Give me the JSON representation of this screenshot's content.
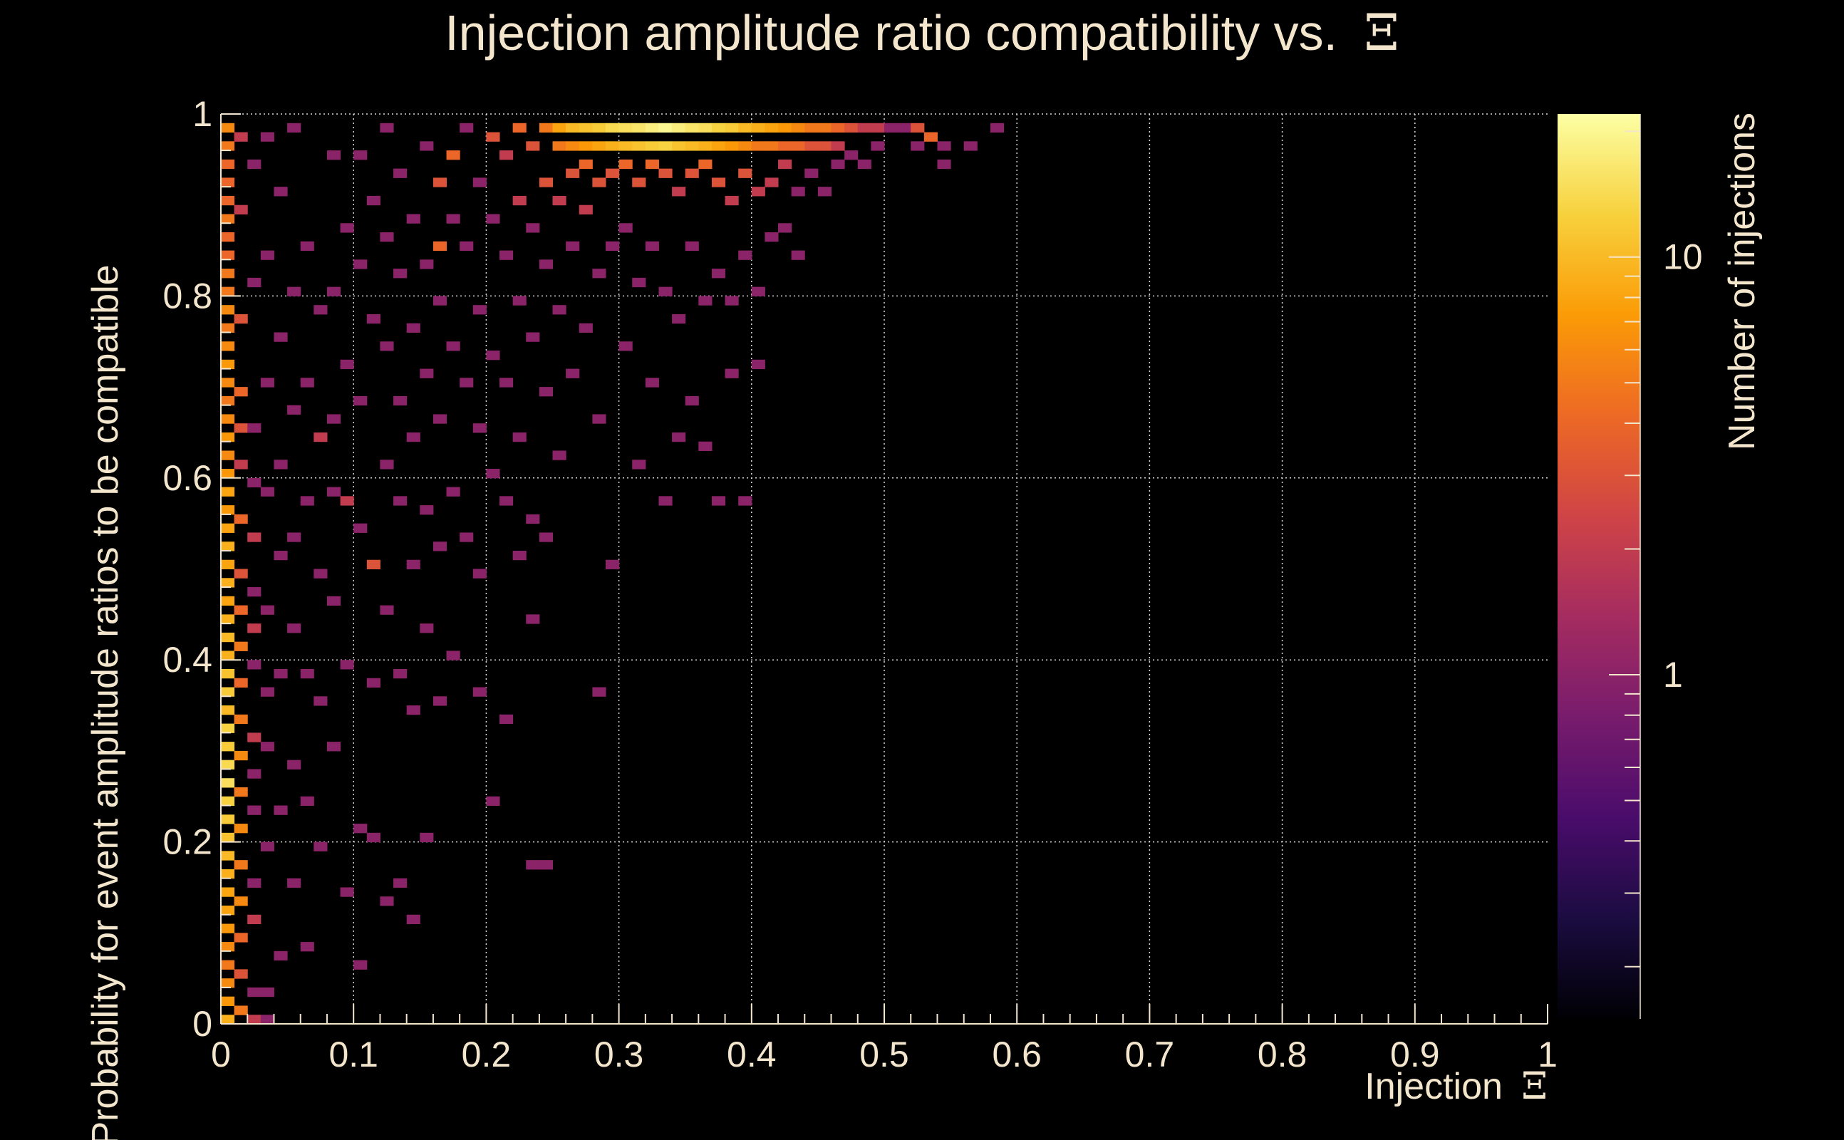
{
  "chart_data": {
    "type": "heatmap",
    "title": "Injection amplitude ratio compatibility vs.",
    "title_symbol": "Ξ",
    "xlabel": "Injection",
    "xlabel_symbol": "Ξ",
    "ylabel": "Probability for event amplitude ratios to be compatible",
    "colorbar_label": "Number of injections",
    "xlim": [
      0,
      1
    ],
    "ylim": [
      0,
      1
    ],
    "x_ticks": [
      "0",
      "0.1",
      "0.2",
      "0.3",
      "0.4",
      "0.5",
      "0.6",
      "0.7",
      "0.8",
      "0.9",
      "1"
    ],
    "y_ticks": [
      "0",
      "0.2",
      "0.4",
      "0.6",
      "0.8",
      "1"
    ],
    "colorbar_ticks": [
      "1",
      "10"
    ],
    "colorbar_scale": "log",
    "colorbar_range": [
      0.15,
      22
    ],
    "grid": true,
    "colors": {
      "background": "#000000",
      "text": "#f3e6cd",
      "grid": "#d9d9d9"
    },
    "colormap": [
      "#000004",
      "#1b0c41",
      "#4a0c6b",
      "#781c6d",
      "#a52c60",
      "#cf4446",
      "#ed6925",
      "#fb9b06",
      "#f7d13d",
      "#fcffa4"
    ],
    "bin_size": [
      0.01,
      0.01
    ],
    "cells": [
      [
        0.005,
        0.985,
        6
      ],
      [
        0.005,
        0.965,
        5
      ],
      [
        0.005,
        0.945,
        4
      ],
      [
        0.005,
        0.925,
        4
      ],
      [
        0.005,
        0.905,
        4
      ],
      [
        0.005,
        0.885,
        5
      ],
      [
        0.005,
        0.865,
        4
      ],
      [
        0.005,
        0.845,
        4
      ],
      [
        0.005,
        0.825,
        5
      ],
      [
        0.005,
        0.805,
        5
      ],
      [
        0.005,
        0.785,
        6
      ],
      [
        0.005,
        0.765,
        5
      ],
      [
        0.005,
        0.745,
        6
      ],
      [
        0.005,
        0.725,
        7
      ],
      [
        0.005,
        0.705,
        6
      ],
      [
        0.005,
        0.685,
        5
      ],
      [
        0.005,
        0.665,
        6
      ],
      [
        0.005,
        0.645,
        7
      ],
      [
        0.005,
        0.625,
        6
      ],
      [
        0.005,
        0.605,
        7
      ],
      [
        0.005,
        0.585,
        8
      ],
      [
        0.005,
        0.565,
        7
      ],
      [
        0.005,
        0.545,
        8
      ],
      [
        0.005,
        0.525,
        9
      ],
      [
        0.005,
        0.505,
        8
      ],
      [
        0.005,
        0.485,
        9
      ],
      [
        0.005,
        0.465,
        8
      ],
      [
        0.005,
        0.445,
        9
      ],
      [
        0.005,
        0.425,
        10
      ],
      [
        0.005,
        0.405,
        9
      ],
      [
        0.005,
        0.385,
        11
      ],
      [
        0.005,
        0.365,
        12
      ],
      [
        0.005,
        0.345,
        10
      ],
      [
        0.005,
        0.325,
        13
      ],
      [
        0.005,
        0.305,
        12
      ],
      [
        0.005,
        0.285,
        14
      ],
      [
        0.005,
        0.265,
        15
      ],
      [
        0.005,
        0.245,
        13
      ],
      [
        0.005,
        0.225,
        12
      ],
      [
        0.005,
        0.205,
        11
      ],
      [
        0.005,
        0.185,
        10
      ],
      [
        0.005,
        0.165,
        9
      ],
      [
        0.005,
        0.145,
        8
      ],
      [
        0.005,
        0.125,
        8
      ],
      [
        0.005,
        0.105,
        7
      ],
      [
        0.005,
        0.085,
        6
      ],
      [
        0.005,
        0.065,
        5
      ],
      [
        0.005,
        0.045,
        6
      ],
      [
        0.005,
        0.025,
        7
      ],
      [
        0.005,
        0.005,
        9
      ],
      [
        0.015,
        0.975,
        2
      ],
      [
        0.015,
        0.895,
        2
      ],
      [
        0.015,
        0.775,
        3
      ],
      [
        0.015,
        0.695,
        4
      ],
      [
        0.015,
        0.655,
        3
      ],
      [
        0.015,
        0.615,
        2
      ],
      [
        0.015,
        0.555,
        4
      ],
      [
        0.015,
        0.495,
        3
      ],
      [
        0.015,
        0.455,
        4
      ],
      [
        0.015,
        0.415,
        5
      ],
      [
        0.015,
        0.375,
        4
      ],
      [
        0.015,
        0.335,
        5
      ],
      [
        0.015,
        0.295,
        6
      ],
      [
        0.015,
        0.255,
        5
      ],
      [
        0.015,
        0.215,
        6
      ],
      [
        0.015,
        0.175,
        5
      ],
      [
        0.015,
        0.135,
        6
      ],
      [
        0.015,
        0.095,
        4
      ],
      [
        0.015,
        0.055,
        3
      ],
      [
        0.015,
        0.015,
        5
      ],
      [
        0.025,
        0.945,
        1
      ],
      [
        0.025,
        0.815,
        1
      ],
      [
        0.025,
        0.655,
        1
      ],
      [
        0.025,
        0.595,
        1
      ],
      [
        0.025,
        0.535,
        2
      ],
      [
        0.025,
        0.475,
        1
      ],
      [
        0.025,
        0.435,
        2
      ],
      [
        0.025,
        0.395,
        1
      ],
      [
        0.025,
        0.315,
        2
      ],
      [
        0.025,
        0.275,
        1
      ],
      [
        0.025,
        0.235,
        1
      ],
      [
        0.025,
        0.155,
        1
      ],
      [
        0.025,
        0.115,
        2
      ],
      [
        0.025,
        0.035,
        1
      ],
      [
        0.025,
        0.005,
        2
      ],
      [
        0.035,
        0.975,
        1
      ],
      [
        0.035,
        0.845,
        1
      ],
      [
        0.035,
        0.705,
        1
      ],
      [
        0.035,
        0.585,
        1
      ],
      [
        0.035,
        0.455,
        1
      ],
      [
        0.035,
        0.365,
        1
      ],
      [
        0.035,
        0.305,
        1
      ],
      [
        0.035,
        0.195,
        1
      ],
      [
        0.035,
        0.035,
        1
      ],
      [
        0.035,
        0.005,
        1
      ],
      [
        0.045,
        0.915,
        1
      ],
      [
        0.045,
        0.755,
        1
      ],
      [
        0.045,
        0.615,
        1
      ],
      [
        0.045,
        0.515,
        1
      ],
      [
        0.045,
        0.385,
        1
      ],
      [
        0.045,
        0.235,
        1
      ],
      [
        0.045,
        0.075,
        1
      ],
      [
        0.055,
        0.985,
        1
      ],
      [
        0.055,
        0.805,
        1
      ],
      [
        0.055,
        0.675,
        1
      ],
      [
        0.055,
        0.535,
        1
      ],
      [
        0.055,
        0.435,
        1
      ],
      [
        0.055,
        0.285,
        1
      ],
      [
        0.055,
        0.155,
        1
      ],
      [
        0.065,
        0.855,
        1
      ],
      [
        0.065,
        0.705,
        1
      ],
      [
        0.065,
        0.575,
        1
      ],
      [
        0.065,
        0.385,
        1
      ],
      [
        0.065,
        0.245,
        1
      ],
      [
        0.065,
        0.085,
        1
      ],
      [
        0.075,
        0.785,
        1
      ],
      [
        0.075,
        0.645,
        2
      ],
      [
        0.075,
        0.495,
        1
      ],
      [
        0.075,
        0.355,
        1
      ],
      [
        0.075,
        0.195,
        1
      ],
      [
        0.085,
        0.955,
        1
      ],
      [
        0.085,
        0.805,
        1
      ],
      [
        0.085,
        0.665,
        1
      ],
      [
        0.085,
        0.585,
        1
      ],
      [
        0.085,
        0.465,
        1
      ],
      [
        0.085,
        0.305,
        1
      ],
      [
        0.095,
        0.875,
        1
      ],
      [
        0.095,
        0.725,
        1
      ],
      [
        0.095,
        0.575,
        2
      ],
      [
        0.095,
        0.395,
        1
      ],
      [
        0.095,
        0.145,
        1
      ],
      [
        0.105,
        0.955,
        1
      ],
      [
        0.105,
        0.835,
        1
      ],
      [
        0.105,
        0.685,
        1
      ],
      [
        0.105,
        0.545,
        1
      ],
      [
        0.105,
        0.215,
        1
      ],
      [
        0.105,
        0.065,
        1
      ],
      [
        0.115,
        0.905,
        1
      ],
      [
        0.115,
        0.775,
        1
      ],
      [
        0.115,
        0.505,
        3
      ],
      [
        0.115,
        0.375,
        1
      ],
      [
        0.115,
        0.205,
        1
      ],
      [
        0.125,
        0.985,
        1
      ],
      [
        0.125,
        0.865,
        1
      ],
      [
        0.125,
        0.745,
        1
      ],
      [
        0.125,
        0.615,
        1
      ],
      [
        0.125,
        0.455,
        1
      ],
      [
        0.125,
        0.135,
        1
      ],
      [
        0.135,
        0.935,
        1
      ],
      [
        0.135,
        0.825,
        1
      ],
      [
        0.135,
        0.685,
        1
      ],
      [
        0.135,
        0.575,
        1
      ],
      [
        0.135,
        0.385,
        1
      ],
      [
        0.135,
        0.155,
        1
      ],
      [
        0.145,
        0.885,
        1
      ],
      [
        0.145,
        0.765,
        1
      ],
      [
        0.145,
        0.645,
        1
      ],
      [
        0.145,
        0.505,
        1
      ],
      [
        0.145,
        0.345,
        1
      ],
      [
        0.145,
        0.115,
        1
      ],
      [
        0.155,
        0.965,
        1
      ],
      [
        0.155,
        0.835,
        1
      ],
      [
        0.155,
        0.715,
        1
      ],
      [
        0.155,
        0.565,
        1
      ],
      [
        0.155,
        0.435,
        1
      ],
      [
        0.155,
        0.205,
        1
      ],
      [
        0.165,
        0.925,
        3
      ],
      [
        0.165,
        0.855,
        4
      ],
      [
        0.165,
        0.795,
        1
      ],
      [
        0.165,
        0.665,
        1
      ],
      [
        0.165,
        0.525,
        1
      ],
      [
        0.165,
        0.355,
        1
      ],
      [
        0.175,
        0.955,
        4
      ],
      [
        0.175,
        0.885,
        1
      ],
      [
        0.175,
        0.745,
        1
      ],
      [
        0.175,
        0.585,
        1
      ],
      [
        0.175,
        0.405,
        1
      ],
      [
        0.185,
        0.985,
        1
      ],
      [
        0.185,
        0.855,
        1
      ],
      [
        0.185,
        0.705,
        1
      ],
      [
        0.185,
        0.535,
        1
      ],
      [
        0.195,
        0.925,
        1
      ],
      [
        0.195,
        0.785,
        1
      ],
      [
        0.195,
        0.655,
        1
      ],
      [
        0.195,
        0.495,
        1
      ],
      [
        0.195,
        0.365,
        1
      ],
      [
        0.205,
        0.975,
        3
      ],
      [
        0.205,
        0.885,
        1
      ],
      [
        0.205,
        0.735,
        1
      ],
      [
        0.205,
        0.605,
        1
      ],
      [
        0.205,
        0.245,
        1
      ],
      [
        0.215,
        0.955,
        2
      ],
      [
        0.215,
        0.845,
        1
      ],
      [
        0.215,
        0.705,
        1
      ],
      [
        0.215,
        0.575,
        1
      ],
      [
        0.215,
        0.335,
        1
      ],
      [
        0.225,
        0.985,
        4
      ],
      [
        0.225,
        0.905,
        2
      ],
      [
        0.225,
        0.795,
        1
      ],
      [
        0.225,
        0.645,
        1
      ],
      [
        0.225,
        0.515,
        1
      ],
      [
        0.235,
        0.965,
        3
      ],
      [
        0.235,
        0.875,
        1
      ],
      [
        0.235,
        0.755,
        1
      ],
      [
        0.235,
        0.555,
        1
      ],
      [
        0.235,
        0.445,
        1
      ],
      [
        0.235,
        0.175,
        1
      ],
      [
        0.245,
        0.985,
        5
      ],
      [
        0.245,
        0.925,
        3
      ],
      [
        0.245,
        0.835,
        1
      ],
      [
        0.245,
        0.695,
        1
      ],
      [
        0.245,
        0.535,
        1
      ],
      [
        0.245,
        0.175,
        1
      ],
      [
        0.255,
        0.985,
        8
      ],
      [
        0.255,
        0.965,
        5
      ],
      [
        0.255,
        0.905,
        2
      ],
      [
        0.255,
        0.785,
        1
      ],
      [
        0.255,
        0.625,
        1
      ],
      [
        0.265,
        0.985,
        10
      ],
      [
        0.265,
        0.965,
        6
      ],
      [
        0.265,
        0.935,
        3
      ],
      [
        0.265,
        0.855,
        1
      ],
      [
        0.265,
        0.715,
        1
      ],
      [
        0.275,
        0.985,
        11
      ],
      [
        0.275,
        0.965,
        7
      ],
      [
        0.275,
        0.945,
        4
      ],
      [
        0.275,
        0.895,
        2
      ],
      [
        0.275,
        0.765,
        1
      ],
      [
        0.285,
        0.985,
        12
      ],
      [
        0.285,
        0.965,
        8
      ],
      [
        0.285,
        0.925,
        3
      ],
      [
        0.285,
        0.825,
        1
      ],
      [
        0.285,
        0.665,
        1
      ],
      [
        0.285,
        0.365,
        1
      ],
      [
        0.295,
        0.985,
        14
      ],
      [
        0.295,
        0.965,
        9
      ],
      [
        0.295,
        0.935,
        3
      ],
      [
        0.295,
        0.855,
        1
      ],
      [
        0.295,
        0.505,
        1
      ],
      [
        0.305,
        0.985,
        15
      ],
      [
        0.305,
        0.965,
        10
      ],
      [
        0.305,
        0.945,
        4
      ],
      [
        0.305,
        0.875,
        1
      ],
      [
        0.305,
        0.745,
        1
      ],
      [
        0.315,
        0.985,
        16
      ],
      [
        0.315,
        0.965,
        11
      ],
      [
        0.315,
        0.925,
        3
      ],
      [
        0.315,
        0.815,
        1
      ],
      [
        0.315,
        0.615,
        1
      ],
      [
        0.325,
        0.985,
        18
      ],
      [
        0.325,
        0.965,
        12
      ],
      [
        0.325,
        0.945,
        4
      ],
      [
        0.325,
        0.855,
        1
      ],
      [
        0.325,
        0.705,
        1
      ],
      [
        0.335,
        0.985,
        20
      ],
      [
        0.335,
        0.965,
        13
      ],
      [
        0.335,
        0.935,
        3
      ],
      [
        0.335,
        0.805,
        1
      ],
      [
        0.335,
        0.575,
        1
      ],
      [
        0.345,
        0.985,
        18
      ],
      [
        0.345,
        0.965,
        11
      ],
      [
        0.345,
        0.915,
        2
      ],
      [
        0.345,
        0.775,
        1
      ],
      [
        0.345,
        0.645,
        1
      ],
      [
        0.355,
        0.985,
        16
      ],
      [
        0.355,
        0.965,
        10
      ],
      [
        0.355,
        0.935,
        3
      ],
      [
        0.355,
        0.855,
        1
      ],
      [
        0.355,
        0.685,
        1
      ],
      [
        0.365,
        0.985,
        15
      ],
      [
        0.365,
        0.965,
        9
      ],
      [
        0.365,
        0.945,
        4
      ],
      [
        0.365,
        0.795,
        1
      ],
      [
        0.365,
        0.635,
        1
      ],
      [
        0.375,
        0.985,
        13
      ],
      [
        0.375,
        0.965,
        8
      ],
      [
        0.375,
        0.925,
        3
      ],
      [
        0.375,
        0.825,
        1
      ],
      [
        0.375,
        0.575,
        1
      ],
      [
        0.385,
        0.985,
        12
      ],
      [
        0.385,
        0.965,
        7
      ],
      [
        0.385,
        0.905,
        2
      ],
      [
        0.385,
        0.795,
        1
      ],
      [
        0.385,
        0.715,
        1
      ],
      [
        0.395,
        0.985,
        10
      ],
      [
        0.395,
        0.965,
        6
      ],
      [
        0.395,
        0.935,
        3
      ],
      [
        0.395,
        0.845,
        1
      ],
      [
        0.395,
        0.575,
        1
      ],
      [
        0.405,
        0.985,
        9
      ],
      [
        0.405,
        0.965,
        5
      ],
      [
        0.405,
        0.915,
        2
      ],
      [
        0.405,
        0.805,
        1
      ],
      [
        0.405,
        0.725,
        1
      ],
      [
        0.415,
        0.985,
        8
      ],
      [
        0.415,
        0.965,
        5
      ],
      [
        0.415,
        0.925,
        2
      ],
      [
        0.415,
        0.865,
        1
      ],
      [
        0.425,
        0.985,
        7
      ],
      [
        0.425,
        0.965,
        4
      ],
      [
        0.425,
        0.945,
        2
      ],
      [
        0.425,
        0.875,
        1
      ],
      [
        0.435,
        0.985,
        6
      ],
      [
        0.435,
        0.965,
        4
      ],
      [
        0.435,
        0.915,
        1
      ],
      [
        0.435,
        0.845,
        1
      ],
      [
        0.445,
        0.985,
        5
      ],
      [
        0.445,
        0.965,
        3
      ],
      [
        0.445,
        0.935,
        1
      ],
      [
        0.455,
        0.985,
        5
      ],
      [
        0.455,
        0.965,
        3
      ],
      [
        0.455,
        0.915,
        1
      ],
      [
        0.465,
        0.985,
        4
      ],
      [
        0.465,
        0.965,
        2
      ],
      [
        0.465,
        0.945,
        1
      ],
      [
        0.475,
        0.985,
        3
      ],
      [
        0.475,
        0.955,
        1
      ],
      [
        0.485,
        0.985,
        2
      ],
      [
        0.485,
        0.945,
        1
      ],
      [
        0.495,
        0.985,
        2
      ],
      [
        0.495,
        0.965,
        1
      ],
      [
        0.505,
        0.985,
        1
      ],
      [
        0.515,
        0.985,
        1
      ],
      [
        0.525,
        0.985,
        3
      ],
      [
        0.525,
        0.965,
        1
      ],
      [
        0.535,
        0.975,
        4
      ],
      [
        0.545,
        0.965,
        1
      ],
      [
        0.545,
        0.945,
        1
      ],
      [
        0.565,
        0.965,
        1
      ],
      [
        0.585,
        0.985,
        1
      ]
    ]
  }
}
